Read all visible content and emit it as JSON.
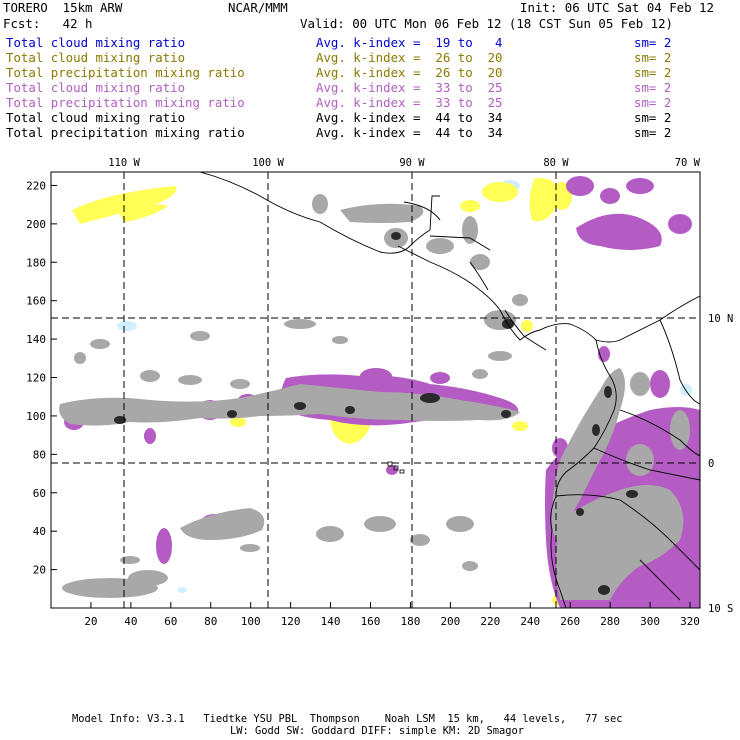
{
  "header": {
    "model": "TORERO  15km ARW",
    "org": "NCAR/MMM",
    "init": "Init: 06 UTC Sat 04 Feb 12",
    "fcst": "Fcst:   42 h",
    "valid": "Valid: 00 UTC Mon 06 Feb 12 (18 CST Sun 05 Feb 12)"
  },
  "legend": [
    {
      "field": "Total cloud mixing ratio",
      "kindex": "Avg. k-index =  19 to   4",
      "sm": "sm= 2",
      "color": "#0000cc"
    },
    {
      "field": "Total cloud mixing ratio",
      "kindex": "Avg. k-index =  26 to  20",
      "sm": "sm= 2",
      "color": "#8a7a00"
    },
    {
      "field": "Total precipitation mixing ratio",
      "kindex": "Avg. k-index =  26 to  20",
      "sm": "sm= 2",
      "color": "#8a7a00"
    },
    {
      "field": "Total cloud mixing ratio",
      "kindex": "Avg. k-index =  33 to  25",
      "sm": "sm= 2",
      "color": "#b05fc0"
    },
    {
      "field": "Total precipitation mixing ratio",
      "kindex": "Avg. k-index =  33 to  25",
      "sm": "sm= 2",
      "color": "#b05fc0"
    },
    {
      "field": "Total cloud mixing ratio",
      "kindex": "Avg. k-index =  44 to  34",
      "sm": "sm= 2",
      "color": "#000000"
    },
    {
      "field": "Total precipitation mixing ratio",
      "kindex": "Avg. k-index =  44 to  34",
      "sm": "sm= 2",
      "color": "#000000"
    }
  ],
  "map": {
    "x_ticks": [
      "20",
      "40",
      "60",
      "80",
      "100",
      "120",
      "140",
      "160",
      "180",
      "200",
      "220",
      "240",
      "260",
      "280",
      "300",
      "320"
    ],
    "y_ticks": [
      "20",
      "40",
      "60",
      "80",
      "100",
      "120",
      "140",
      "160",
      "180",
      "200",
      "220"
    ],
    "lon_labels": [
      "110 W",
      "100 W",
      "90 W",
      "80 W",
      "70 W"
    ],
    "lat_labels": [
      "10 N",
      "0",
      "10 S"
    ],
    "colors": {
      "gray": "#a8a8a8",
      "dark": "#2a2a2a",
      "purple": "#b45cc4",
      "yellow": "#ffff55",
      "lightblue": "#cfefff",
      "coast": "#000000"
    }
  },
  "footer": {
    "line1": "Model Info: V3.3.1   Tiedtke YSU PBL  Thompson    Noah LSM  15 km,   44 levels,   77 sec",
    "line2": "LW: Godd SW: Goddard DIFF: simple KM: 2D Smagor"
  }
}
